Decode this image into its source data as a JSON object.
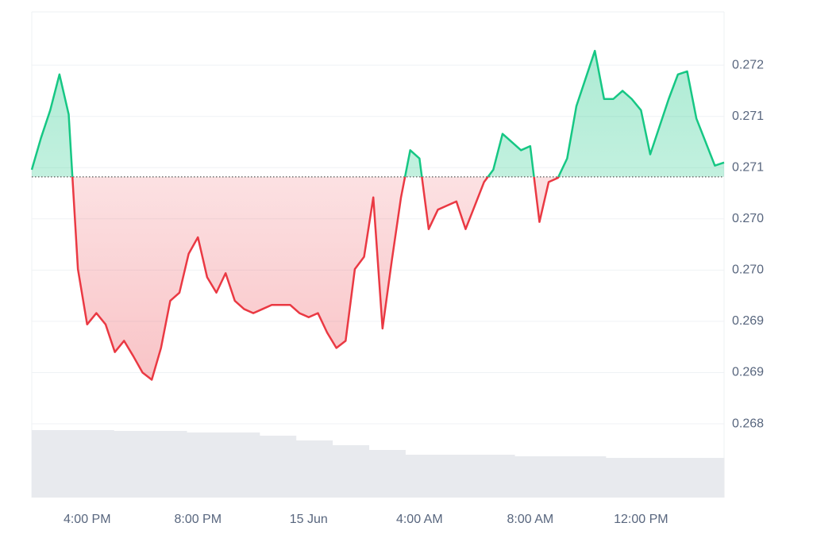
{
  "chart_data": {
    "type": "line",
    "categories": [
      null,
      null,
      null,
      null,
      null,
      null,
      "4:00 PM",
      null,
      null,
      null,
      null,
      null,
      null,
      null,
      null,
      null,
      null,
      null,
      "8:00 PM",
      null,
      null,
      null,
      null,
      null,
      null,
      null,
      null,
      null,
      null,
      null,
      "15 Jun",
      null,
      null,
      null,
      null,
      null,
      null,
      null,
      null,
      null,
      null,
      null,
      "4:00 AM",
      null,
      null,
      null,
      null,
      null,
      null,
      null,
      null,
      null,
      null,
      null,
      "8:00 AM",
      null,
      null,
      null,
      null,
      null,
      null,
      null,
      null,
      null,
      null,
      null,
      "12:00 PM",
      null,
      null,
      null,
      null,
      null,
      null,
      null,
      null,
      null
    ],
    "values": [
      0.27098,
      0.27129,
      0.27156,
      0.27191,
      0.27152,
      0.27001,
      0.26947,
      0.26958,
      0.26947,
      0.2692,
      0.26931,
      0.26916,
      0.269,
      0.26893,
      0.26924,
      0.2697,
      0.26978,
      0.27016,
      0.27032,
      0.26993,
      0.26978,
      0.26997,
      0.2697,
      0.26962,
      0.26958,
      0.26962,
      0.26966,
      0.26966,
      0.26966,
      0.26958,
      0.26954,
      0.26958,
      0.26939,
      0.26924,
      0.26931,
      0.27001,
      0.27013,
      0.27071,
      0.26943,
      0.27009,
      0.27071,
      0.27117,
      0.27109,
      0.2704,
      0.27059,
      0.27063,
      0.27067,
      0.2704,
      0.27063,
      0.27086,
      0.27098,
      0.27133,
      0.27125,
      0.27117,
      0.27121,
      0.27047,
      0.27086,
      0.2709,
      0.27109,
      0.2716,
      0.27187,
      0.27214,
      0.27167,
      0.27167,
      0.27175,
      0.27167,
      0.27156,
      0.27113,
      0.2714,
      0.27167,
      0.27191,
      0.27194,
      0.27148,
      0.27125,
      0.27102,
      0.27105
    ],
    "baseline": 0.27091,
    "up_color": "#16c784",
    "down_color": "#ea3943",
    "ylim": [
      0.26778,
      0.27252
    ],
    "yticks": [
      {
        "value": 0.272,
        "label": "0.272"
      },
      {
        "value": 0.2715,
        "label": "0.271"
      },
      {
        "value": 0.271,
        "label": "0.271"
      },
      {
        "value": 0.2705,
        "label": "0.270"
      },
      {
        "value": 0.27,
        "label": "0.270"
      },
      {
        "value": 0.2695,
        "label": "0.269"
      },
      {
        "value": 0.269,
        "label": "0.269"
      },
      {
        "value": 0.2685,
        "label": "0.268"
      }
    ],
    "grid": true,
    "volume": [
      85,
      85,
      85,
      85,
      85,
      85,
      85,
      85,
      85,
      84,
      84,
      84,
      84,
      84,
      84,
      84,
      84,
      82,
      82,
      82,
      82,
      82,
      82,
      82,
      82,
      78,
      78,
      78,
      78,
      72,
      72,
      72,
      72,
      66,
      66,
      66,
      66,
      60,
      60,
      60,
      60,
      54,
      54,
      54,
      54,
      54,
      54,
      54,
      54,
      54,
      54,
      54,
      54,
      52,
      52,
      52,
      52,
      52,
      52,
      52,
      52,
      52,
      52,
      50,
      50,
      50,
      50,
      50,
      50,
      50,
      50,
      50,
      50,
      50,
      50,
      50
    ],
    "volume_lim": [
      0,
      100
    ],
    "volume_color": "#e8eaee"
  }
}
